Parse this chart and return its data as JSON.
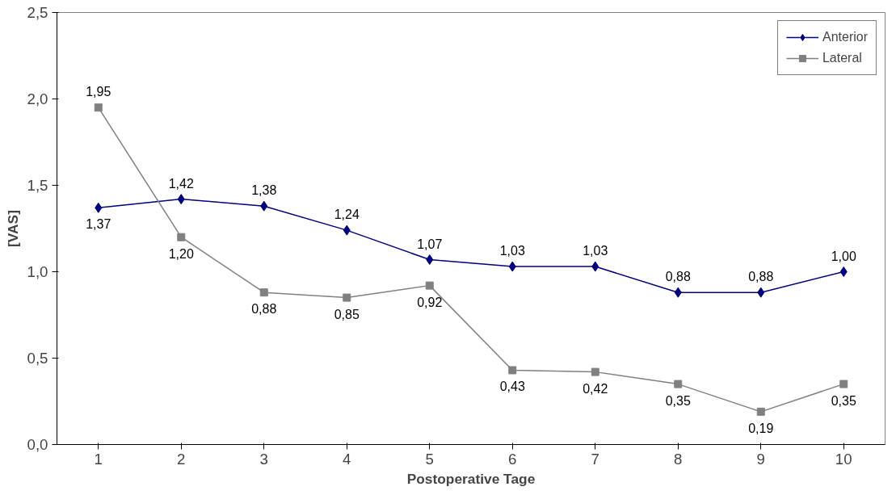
{
  "chart_data": {
    "type": "line",
    "xlabel": "Postoperative Tage",
    "ylabel": "[VAS]",
    "categories": [
      "1",
      "2",
      "3",
      "4",
      "5",
      "6",
      "7",
      "8",
      "9",
      "10"
    ],
    "series": [
      {
        "name": "Anterior",
        "color": "#000080",
        "marker": "diamond",
        "values": [
          1.37,
          1.42,
          1.38,
          1.24,
          1.07,
          1.03,
          1.03,
          0.88,
          0.88,
          1.0
        ],
        "value_labels": [
          "1,37",
          "1,42",
          "1,38",
          "1,24",
          "1,07",
          "1,03",
          "1,03",
          "0,88",
          "0,88",
          "1,00"
        ]
      },
      {
        "name": "Lateral",
        "color": "#808080",
        "marker": "square",
        "values": [
          1.95,
          1.2,
          0.88,
          0.85,
          0.92,
          0.43,
          0.42,
          0.35,
          0.19,
          0.35
        ],
        "value_labels": [
          "1,95",
          "1,20",
          "0,88",
          "0,85",
          "0,92",
          "0,43",
          "0,42",
          "0,35",
          "0,19",
          "0,35"
        ]
      }
    ],
    "ylim": [
      0,
      2.5
    ],
    "yticks": [
      {
        "value": 0,
        "label": "0,0"
      },
      {
        "value": 0.5,
        "label": "0,5"
      },
      {
        "value": 1,
        "label": "1,0"
      },
      {
        "value": 1.5,
        "label": "1,5"
      },
      {
        "value": 2,
        "label": "2,0"
      },
      {
        "value": 2.5,
        "label": "2,5"
      }
    ],
    "grid": false,
    "legend": "top right",
    "line_style": "solid"
  }
}
